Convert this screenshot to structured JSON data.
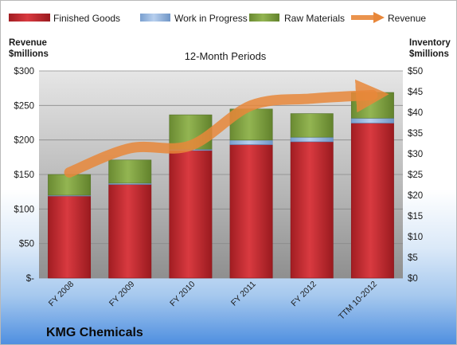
{
  "chart_data": {
    "type": "bar",
    "title": "KMG Chemicals",
    "subtitle": "12-Month Periods",
    "categories": [
      "FY 2008",
      "FY 2009",
      "FY 2010",
      "FY 2011",
      "FY 2012",
      "TTM 10-2012"
    ],
    "y_left_label_line1": "Revenue",
    "y_left_label_line2": "$millions",
    "y_right_label_line1": "Inventory",
    "y_right_label_line2": "$millions",
    "y_left_ticks": [
      "$-",
      "$50",
      "$100",
      "$150",
      "$200",
      "$250",
      "$300"
    ],
    "y_right_ticks": [
      "$0",
      "$5",
      "$10",
      "$15",
      "$20",
      "$25",
      "$30",
      "$35",
      "$40",
      "$45",
      "$50"
    ],
    "ylim_left": [
      0,
      300
    ],
    "ylim_right": [
      0,
      50
    ],
    "series": [
      {
        "name": "Finished Goods",
        "kind": "bar",
        "axis": "right",
        "color": "#c0272d",
        "values": [
          19.8,
          22.6,
          30.8,
          32.2,
          32.9,
          37.4
        ]
      },
      {
        "name": "Work in Progress",
        "kind": "bar",
        "axis": "right",
        "color": "#8cb0dc",
        "values": [
          0.2,
          0.3,
          0.3,
          1.1,
          1.1,
          1.2
        ]
      },
      {
        "name": "Raw Materials",
        "kind": "bar",
        "axis": "right",
        "color": "#7c9e3c",
        "values": [
          5.0,
          5.6,
          8.3,
          7.5,
          5.7,
          6.2
        ]
      },
      {
        "name": "Revenue",
        "kind": "line",
        "axis": "left",
        "color": "#e8873a",
        "values": [
          153,
          188,
          192,
          250,
          260,
          265
        ]
      }
    ],
    "grid": true,
    "legend_position": "top"
  }
}
